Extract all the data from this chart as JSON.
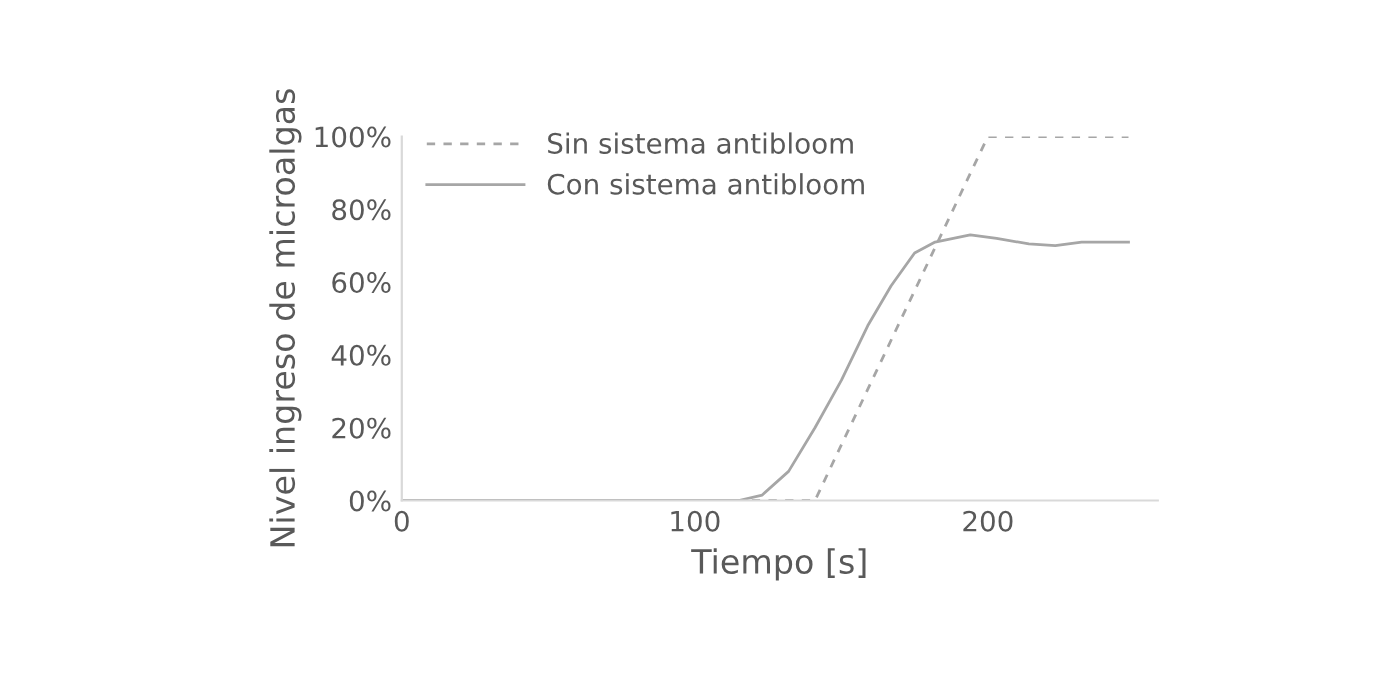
{
  "chart_data": {
    "type": "line",
    "xlabel": "Tiempo [s]",
    "ylabel": "Nivel ingreso de microalgas",
    "xlim": [
      0,
      258
    ],
    "xticks": [
      0,
      100,
      200
    ],
    "ylim": [
      0,
      100
    ],
    "yticks": [
      {
        "value": 0,
        "label": "0%"
      },
      {
        "value": 20,
        "label": "20%"
      },
      {
        "value": 40,
        "label": "40%"
      },
      {
        "value": 60,
        "label": "60%"
      },
      {
        "value": 80,
        "label": "80%"
      },
      {
        "value": 100,
        "label": "100%"
      }
    ],
    "grid": false,
    "legend": "top left",
    "marker": "none",
    "series": [
      {
        "name": "Sin sistema antibloom",
        "color": "#a6a6a6",
        "line_style": "dashed",
        "x": [
          0,
          141,
          200,
          248
        ],
        "values": [
          0,
          0,
          100,
          100
        ]
      },
      {
        "name": "Con sistema antibloom",
        "color": "#a6a6a6",
        "line_style": "solid",
        "x": [
          0,
          115,
          123,
          132,
          141,
          150,
          159,
          167,
          175,
          182,
          194,
          203,
          214,
          223,
          232,
          248
        ],
        "values": [
          0,
          0,
          1.5,
          8,
          20,
          33,
          48,
          59,
          68,
          71,
          73,
          72,
          70.5,
          70,
          71,
          71
        ]
      }
    ]
  }
}
